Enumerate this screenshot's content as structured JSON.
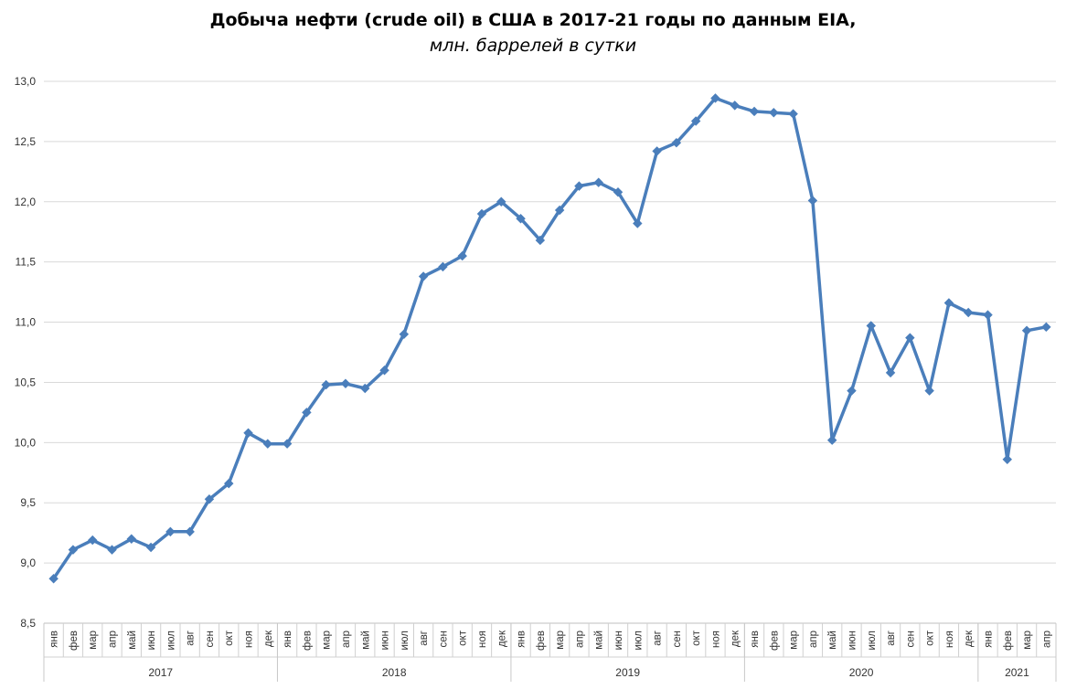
{
  "chart_data": {
    "type": "line",
    "title": "Добыча нефти (crude oil) в США в 2017-21 годы по данным EIA,",
    "subtitle": "млн. баррелей в сутки",
    "ylim": [
      8.5,
      13.0
    ],
    "ytick_step": 0.5,
    "yticks": [
      "8,5",
      "9,0",
      "9,5",
      "10,0",
      "10,5",
      "11,0",
      "11,5",
      "12,0",
      "12,5",
      "13,0"
    ],
    "grid": "horizontal",
    "line_color": "#4a7ebb",
    "years": [
      {
        "label": "2017",
        "months": 12
      },
      {
        "label": "2018",
        "months": 12
      },
      {
        "label": "2019",
        "months": 12
      },
      {
        "label": "2020",
        "months": 12
      },
      {
        "label": "2021",
        "months": 4
      }
    ],
    "categories": [
      "янв",
      "фев",
      "мар",
      "апр",
      "май",
      "июн",
      "июл",
      "авг",
      "сен",
      "окт",
      "ноя",
      "дек",
      "янв",
      "фев",
      "мар",
      "апр",
      "май",
      "июн",
      "июл",
      "авг",
      "сен",
      "окт",
      "ноя",
      "дек",
      "янв",
      "фев",
      "мар",
      "апр",
      "май",
      "июн",
      "июл",
      "авг",
      "сен",
      "окт",
      "ноя",
      "дек",
      "янв",
      "фев",
      "мар",
      "апр",
      "май",
      "июн",
      "июл",
      "авг",
      "сен",
      "окт",
      "ноя",
      "дек",
      "янв",
      "фев",
      "мар",
      "апр"
    ],
    "series": [
      {
        "values": [
          8.87,
          9.11,
          9.19,
          9.11,
          9.2,
          9.13,
          9.26,
          9.26,
          9.53,
          9.66,
          10.08,
          9.99,
          9.99,
          10.25,
          10.48,
          10.49,
          10.45,
          10.6,
          10.9,
          11.38,
          11.46,
          11.55,
          11.9,
          12.0,
          11.86,
          11.68,
          11.93,
          12.13,
          12.16,
          12.08,
          11.82,
          12.42,
          12.49,
          12.67,
          12.86,
          12.8,
          12.75,
          12.74,
          12.73,
          12.01,
          10.02,
          10.43,
          10.97,
          10.58,
          10.87,
          10.43,
          11.16,
          11.08,
          11.06,
          9.86,
          10.93,
          10.96
        ]
      }
    ]
  }
}
